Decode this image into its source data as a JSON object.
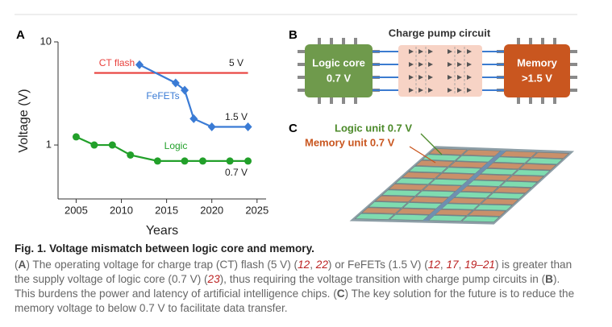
{
  "chart_data": {
    "type": "line",
    "panel": "A",
    "xlabel": "Years",
    "ylabel": "Voltage (V)",
    "log_scale": true,
    "xlim": [
      2003,
      2026
    ],
    "xticks": [
      2005,
      2010,
      2015,
      2020,
      2025
    ],
    "ylim": [
      0.3,
      10
    ],
    "yticks": [
      1,
      10
    ],
    "series": [
      {
        "name": "CT flash",
        "color": "#e8403c",
        "marker": "none",
        "x": [
          2007,
          2024
        ],
        "values": [
          5,
          5
        ]
      },
      {
        "name": "FeFETs",
        "color": "#3a7bd5",
        "marker": "diamond",
        "x": [
          2012,
          2016,
          2017,
          2018,
          2020,
          2024
        ],
        "values": [
          6,
          4,
          3.4,
          1.8,
          1.5,
          1.5
        ]
      },
      {
        "name": "Logic",
        "color": "#22a02a",
        "marker": "circle",
        "x": [
          2005,
          2007,
          2009,
          2011,
          2014,
          2017,
          2019,
          2022,
          2024
        ],
        "values": [
          1.2,
          1.0,
          1.0,
          0.8,
          0.7,
          0.7,
          0.7,
          0.7,
          0.7
        ]
      }
    ],
    "annotations": [
      "5 V",
      "1.5 V",
      "0.7 V"
    ]
  },
  "panel_b": {
    "label": "B",
    "title": "Charge pump circuit",
    "logic": [
      "Logic core",
      "0.7 V"
    ],
    "memory": [
      "Memory",
      ">1.5 V"
    ]
  },
  "panel_c": {
    "label": "C",
    "logic_unit": "Logic unit 0.7 V",
    "memory_unit": "Memory unit 0.7 V"
  },
  "caption": {
    "number": "Fig. 1.",
    "title": "Voltage mismatch between logic core and memory.",
    "body": [
      {
        "kind": "text",
        "text": "("
      },
      {
        "kind": "panel",
        "text": "A"
      },
      {
        "kind": "text",
        "text": ") The operating voltage for charge trap (CT) flash (5 V) ("
      },
      {
        "kind": "ref",
        "text": "12"
      },
      {
        "kind": "text",
        "text": ", "
      },
      {
        "kind": "ref",
        "text": "22"
      },
      {
        "kind": "text",
        "text": ") or FeFETs (1.5 V) ("
      },
      {
        "kind": "ref",
        "text": "12"
      },
      {
        "kind": "text",
        "text": ", "
      },
      {
        "kind": "ref",
        "text": "17"
      },
      {
        "kind": "text",
        "text": ", "
      },
      {
        "kind": "ref",
        "text": "19–21"
      },
      {
        "kind": "text",
        "text": ") is greater than the supply voltage of logic core (0.7 V) ("
      },
      {
        "kind": "ref",
        "text": "23"
      },
      {
        "kind": "text",
        "text": "), thus requiring the voltage transition with charge pump circuits in ("
      },
      {
        "kind": "panel",
        "text": "B"
      },
      {
        "kind": "text",
        "text": "). This burdens the power and latency of artificial intelligence chips. ("
      },
      {
        "kind": "panel",
        "text": "C"
      },
      {
        "kind": "text",
        "text": ") The key solution for the future is to reduce the memory voltage to below 0.7 V to facilitate data transfer."
      }
    ]
  }
}
